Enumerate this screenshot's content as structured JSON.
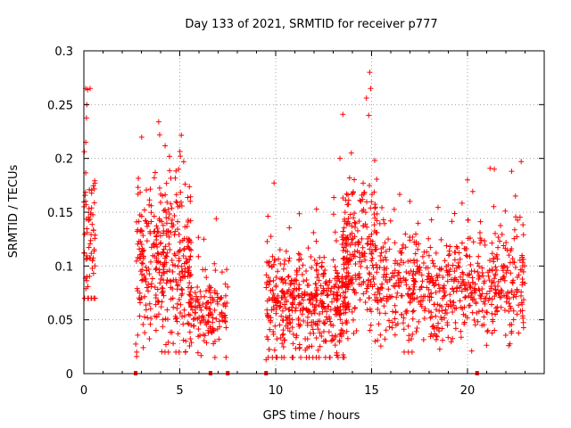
{
  "chart_data": {
    "type": "scatter",
    "title": "Day 133 of 2021, SRMTID for receiver p777",
    "xlabel": "GPS time / hours",
    "ylabel": "SRMTID / TECUs",
    "xlim": [
      0,
      24
    ],
    "ylim": [
      0,
      0.3
    ],
    "grid": true,
    "marker": "+",
    "colors": {
      "series": "#ff0000",
      "grid": "#a0a0a0",
      "axis": "#000000"
    },
    "x_ticks": [
      0,
      5,
      10,
      15,
      20
    ],
    "x_tick_labels": [
      "0",
      "5",
      "10",
      "15",
      "20"
    ],
    "y_ticks": [
      0,
      0.05,
      0.1,
      0.15,
      0.2,
      0.25,
      0.3
    ],
    "y_tick_labels": [
      "0",
      "0.05",
      "0.1",
      "0.15",
      "0.2",
      "0.25",
      "0.3"
    ],
    "series": [
      {
        "name": "SRMTID",
        "clusters": [
          {
            "x_range": [
              0.0,
              0.6
            ],
            "y_mean": 0.125,
            "y_sd": 0.035,
            "y_min": 0.07,
            "y_max": 0.265,
            "count": 70
          },
          {
            "x_range": [
              2.7,
              5.6
            ],
            "y_mean": 0.1,
            "y_sd": 0.04,
            "y_min": 0.02,
            "y_max": 0.235,
            "count": 360
          },
          {
            "x_range": [
              5.4,
              7.5
            ],
            "y_mean": 0.055,
            "y_sd": 0.02,
            "y_min": 0.015,
            "y_max": 0.145,
            "count": 150
          },
          {
            "x_range": [
              9.5,
              13.8
            ],
            "y_mean": 0.065,
            "y_sd": 0.025,
            "y_min": 0.015,
            "y_max": 0.2,
            "count": 480
          },
          {
            "x_range": [
              13.5,
              15.3
            ],
            "y_mean": 0.11,
            "y_sd": 0.035,
            "y_min": 0.03,
            "y_max": 0.28,
            "count": 220
          },
          {
            "x_range": [
              15.3,
              23.0
            ],
            "y_mean": 0.08,
            "y_sd": 0.025,
            "y_min": 0.02,
            "y_max": 0.2,
            "count": 640
          }
        ],
        "outliers": [
          {
            "x": 0.1,
            "y": 0.265
          },
          {
            "x": 0.2,
            "y": 0.264
          },
          {
            "x": 0.15,
            "y": 0.25
          },
          {
            "x": 0.1,
            "y": 0.215
          },
          {
            "x": 2.75,
            "y": 0.016
          },
          {
            "x": 3.9,
            "y": 0.234
          },
          {
            "x": 3.95,
            "y": 0.222
          },
          {
            "x": 6.9,
            "y": 0.144
          },
          {
            "x": 9.5,
            "y": 0.013
          },
          {
            "x": 13.5,
            "y": 0.241
          },
          {
            "x": 13.35,
            "y": 0.2
          },
          {
            "x": 14.9,
            "y": 0.28
          },
          {
            "x": 14.95,
            "y": 0.265
          },
          {
            "x": 14.85,
            "y": 0.24
          },
          {
            "x": 20.0,
            "y": 0.18
          },
          {
            "x": 21.4,
            "y": 0.19
          },
          {
            "x": 22.3,
            "y": 0.188
          },
          {
            "x": 22.8,
            "y": 0.197
          },
          {
            "x": 22.5,
            "y": 0.165
          },
          {
            "x": 17.0,
            "y": 0.16
          }
        ],
        "zero_markers": [
          2.7,
          6.6,
          7.5,
          9.5,
          20.5
        ]
      }
    ]
  }
}
